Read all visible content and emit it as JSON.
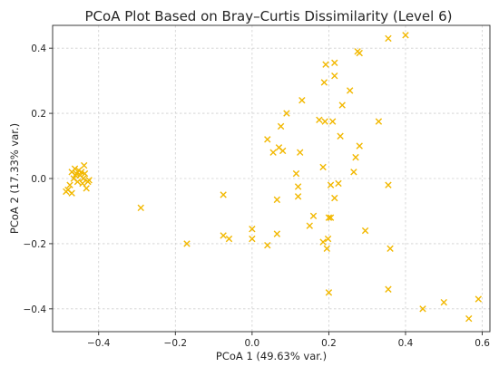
{
  "chart_data": {
    "type": "scatter",
    "title": "PCoA Plot Based on Bray–Curtis Dissimilarity (Level 6)",
    "xlabel": "PCoA 1 (49.63% var.)",
    "ylabel": "PCoA 2 (17.33% var.)",
    "xlim": [
      -0.52,
      0.62
    ],
    "ylim": [
      -0.47,
      0.47
    ],
    "xticks": [
      -0.4,
      -0.2,
      0.0,
      0.2,
      0.4,
      0.6
    ],
    "xtick_labels": [
      "−0.4",
      "−0.2",
      "0.0",
      "0.2",
      "0.4",
      "0.6"
    ],
    "yticks": [
      -0.4,
      -0.2,
      0.0,
      0.2,
      0.4
    ],
    "ytick_labels": [
      "−0.4",
      "−0.2",
      "0.0",
      "0.2",
      "0.4"
    ],
    "grid": true,
    "marker": "x",
    "color": "#f2b800",
    "points": [
      {
        "x": -0.485,
        "y": -0.04
      },
      {
        "x": -0.48,
        "y": -0.035
      },
      {
        "x": -0.475,
        "y": -0.02
      },
      {
        "x": -0.47,
        "y": -0.045
      },
      {
        "x": -0.47,
        "y": 0.02
      },
      {
        "x": -0.465,
        "y": 0.0
      },
      {
        "x": -0.462,
        "y": 0.03
      },
      {
        "x": -0.458,
        "y": 0.015
      },
      {
        "x": -0.455,
        "y": -0.01
      },
      {
        "x": -0.452,
        "y": 0.025
      },
      {
        "x": -0.448,
        "y": 0.01
      },
      {
        "x": -0.445,
        "y": 0.02
      },
      {
        "x": -0.442,
        "y": -0.015
      },
      {
        "x": -0.44,
        "y": 0.0
      },
      {
        "x": -0.438,
        "y": 0.04
      },
      {
        "x": -0.436,
        "y": 0.015
      },
      {
        "x": -0.432,
        "y": -0.03
      },
      {
        "x": -0.428,
        "y": -0.01
      },
      {
        "x": -0.425,
        "y": -0.005
      },
      {
        "x": -0.46,
        "y": 0.01
      },
      {
        "x": -0.29,
        "y": -0.09
      },
      {
        "x": -0.17,
        "y": -0.2
      },
      {
        "x": -0.075,
        "y": -0.05
      },
      {
        "x": -0.075,
        "y": -0.175
      },
      {
        "x": -0.06,
        "y": -0.185
      },
      {
        "x": 0.0,
        "y": -0.155
      },
      {
        "x": 0.0,
        "y": -0.185
      },
      {
        "x": 0.04,
        "y": 0.12
      },
      {
        "x": 0.04,
        "y": -0.205
      },
      {
        "x": 0.055,
        "y": 0.08
      },
      {
        "x": 0.065,
        "y": -0.065
      },
      {
        "x": 0.065,
        "y": -0.17
      },
      {
        "x": 0.07,
        "y": 0.095
      },
      {
        "x": 0.075,
        "y": 0.16
      },
      {
        "x": 0.08,
        "y": 0.085
      },
      {
        "x": 0.09,
        "y": 0.2
      },
      {
        "x": 0.115,
        "y": 0.015
      },
      {
        "x": 0.12,
        "y": -0.025
      },
      {
        "x": 0.12,
        "y": -0.055
      },
      {
        "x": 0.125,
        "y": 0.08
      },
      {
        "x": 0.13,
        "y": 0.24
      },
      {
        "x": 0.15,
        "y": -0.145
      },
      {
        "x": 0.16,
        "y": -0.115
      },
      {
        "x": 0.175,
        "y": 0.18
      },
      {
        "x": 0.185,
        "y": 0.035
      },
      {
        "x": 0.185,
        "y": -0.195
      },
      {
        "x": 0.188,
        "y": 0.295
      },
      {
        "x": 0.19,
        "y": 0.175
      },
      {
        "x": 0.192,
        "y": 0.35
      },
      {
        "x": 0.195,
        "y": -0.215
      },
      {
        "x": 0.198,
        "y": -0.185
      },
      {
        "x": 0.2,
        "y": -0.12
      },
      {
        "x": 0.2,
        "y": -0.35
      },
      {
        "x": 0.205,
        "y": -0.02
      },
      {
        "x": 0.205,
        "y": -0.12
      },
      {
        "x": 0.21,
        "y": 0.175
      },
      {
        "x": 0.215,
        "y": 0.315
      },
      {
        "x": 0.215,
        "y": 0.355
      },
      {
        "x": 0.215,
        "y": -0.06
      },
      {
        "x": 0.225,
        "y": -0.015
      },
      {
        "x": 0.23,
        "y": 0.13
      },
      {
        "x": 0.235,
        "y": 0.225
      },
      {
        "x": 0.255,
        "y": 0.27
      },
      {
        "x": 0.265,
        "y": 0.02
      },
      {
        "x": 0.27,
        "y": 0.065
      },
      {
        "x": 0.275,
        "y": 0.39
      },
      {
        "x": 0.28,
        "y": 0.385
      },
      {
        "x": 0.28,
        "y": 0.1
      },
      {
        "x": 0.295,
        "y": -0.16
      },
      {
        "x": 0.33,
        "y": 0.175
      },
      {
        "x": 0.355,
        "y": 0.43
      },
      {
        "x": 0.355,
        "y": -0.02
      },
      {
        "x": 0.355,
        "y": -0.34
      },
      {
        "x": 0.36,
        "y": -0.215
      },
      {
        "x": 0.4,
        "y": 0.44
      },
      {
        "x": 0.445,
        "y": -0.4
      },
      {
        "x": 0.5,
        "y": -0.38
      },
      {
        "x": 0.565,
        "y": -0.43
      },
      {
        "x": 0.59,
        "y": -0.37
      }
    ]
  }
}
